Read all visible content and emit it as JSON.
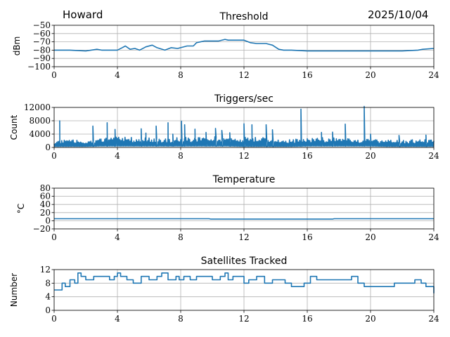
{
  "header": {
    "station": "Howard",
    "date": "2025/10/04"
  },
  "chart_data": [
    {
      "type": "line",
      "title": "Threshold",
      "ylabel": "dBm",
      "xlim": [
        0,
        24
      ],
      "ylim": [
        -100,
        -50
      ],
      "xticks": [
        0,
        4,
        8,
        12,
        16,
        20,
        24
      ],
      "yticks": [
        -100,
        -90,
        -80,
        -70,
        -60,
        -50
      ],
      "ytick_labels": [
        "−100",
        "−90",
        "−80",
        "−70",
        "−60",
        "−50"
      ],
      "grid": true,
      "color": "#1f77b4",
      "x": [
        0,
        1,
        2,
        2.7,
        3,
        4,
        4.3,
        4.5,
        4.8,
        5.1,
        5.4,
        5.8,
        6.2,
        6.5,
        7,
        7.4,
        7.8,
        8,
        8.4,
        8.8,
        9,
        9.5,
        10,
        10.4,
        10.8,
        11,
        11.3,
        11.6,
        12,
        12.4,
        12.8,
        13.4,
        13.8,
        14.2,
        14.5,
        15,
        16,
        17,
        18,
        19,
        20,
        21,
        22,
        23,
        23.3,
        24
      ],
      "y": [
        -80,
        -80,
        -81,
        -79,
        -80,
        -80,
        -77,
        -75,
        -79,
        -78,
        -80,
        -76,
        -74,
        -77,
        -80,
        -77,
        -78,
        -77,
        -75,
        -75,
        -71,
        -69,
        -69,
        -69,
        -67,
        -68,
        -68,
        -68,
        -68,
        -71,
        -72,
        -72,
        -74,
        -79,
        -80,
        -80,
        -81,
        -81,
        -81,
        -81,
        -81,
        -81,
        -81,
        -80,
        -79,
        -78
      ]
    },
    {
      "type": "line",
      "title": "Triggers/sec",
      "ylabel": "Count",
      "xlim": [
        0,
        24
      ],
      "ylim": [
        0,
        12000
      ],
      "xticks": [
        0,
        4,
        8,
        12,
        16,
        20,
        24
      ],
      "yticks": [
        0,
        4000,
        8000,
        12000
      ],
      "ytick_labels": [
        "0",
        "4000",
        "8000",
        "12000"
      ],
      "grid": true,
      "color": "#1f77b4",
      "baseline_x": [
        0,
        1,
        2,
        3,
        4,
        5,
        6,
        7,
        8,
        9,
        10,
        11,
        12,
        13,
        14,
        15,
        16,
        17,
        18,
        19,
        20,
        21,
        22,
        23,
        24
      ],
      "baseline_low": [
        300,
        300,
        300,
        400,
        400,
        400,
        400,
        400,
        400,
        400,
        400,
        400,
        300,
        300,
        300,
        300,
        400,
        400,
        400,
        400,
        400,
        300,
        300,
        300,
        300
      ],
      "baseline_high": [
        2200,
        2300,
        2000,
        2800,
        3200,
        3000,
        3000,
        2800,
        3000,
        3200,
        3200,
        3300,
        3200,
        3200,
        2800,
        2400,
        2800,
        3000,
        2800,
        2600,
        2400,
        2200,
        2200,
        2400,
        2400
      ],
      "spikes": [
        [
          0.35,
          8000
        ],
        [
          2.45,
          6400
        ],
        [
          3.35,
          7400
        ],
        [
          3.85,
          5400
        ],
        [
          5.5,
          5600
        ],
        [
          5.8,
          4300
        ],
        [
          6.45,
          6400
        ],
        [
          7.2,
          7400
        ],
        [
          7.5,
          4000
        ],
        [
          8.05,
          7900
        ],
        [
          8.25,
          6800
        ],
        [
          8.9,
          5500
        ],
        [
          9.6,
          4500
        ],
        [
          10.2,
          5700
        ],
        [
          10.6,
          5100
        ],
        [
          11.1,
          4400
        ],
        [
          12.0,
          7100
        ],
        [
          12.5,
          6800
        ],
        [
          13.4,
          6800
        ],
        [
          13.8,
          5300
        ],
        [
          15.6,
          11500
        ],
        [
          16.9,
          4500
        ],
        [
          17.6,
          4600
        ],
        [
          18.4,
          7000
        ],
        [
          19.6,
          12300
        ],
        [
          20.0,
          4000
        ],
        [
          21.8,
          3600
        ],
        [
          23.5,
          3700
        ]
      ]
    },
    {
      "type": "line",
      "title": "Temperature",
      "ylabel": "°C",
      "xlim": [
        0,
        24
      ],
      "ylim": [
        -20,
        80
      ],
      "xticks": [
        0,
        4,
        8,
        12,
        16,
        20,
        24
      ],
      "yticks": [
        -20,
        0,
        20,
        40,
        60,
        80
      ],
      "ytick_labels": [
        "−20",
        "0",
        "20",
        "40",
        "60",
        "80"
      ],
      "grid": true,
      "color": "#1f77b4",
      "x": [
        0,
        9.8,
        9.9,
        17.6,
        17.7,
        24
      ],
      "y": [
        5,
        5,
        4,
        4,
        5,
        5
      ]
    },
    {
      "type": "line",
      "title": "Satellites Tracked",
      "ylabel": "Number",
      "xlim": [
        0,
        24
      ],
      "ylim": [
        0,
        12
      ],
      "xticks": [
        0,
        4,
        8,
        12,
        16,
        20,
        24
      ],
      "yticks": [
        0,
        4,
        8,
        12
      ],
      "ytick_labels": [
        "0",
        "4",
        "8",
        "12"
      ],
      "grid": true,
      "color": "#1f77b4",
      "step": true,
      "x": [
        0,
        0.5,
        0.7,
        1.0,
        1.3,
        1.5,
        1.7,
        2.0,
        2.5,
        3.0,
        3.5,
        3.8,
        4.0,
        4.2,
        4.6,
        5.0,
        5.5,
        6.0,
        6.5,
        6.8,
        7.2,
        7.7,
        7.9,
        8.2,
        8.6,
        9.0,
        9.5,
        10.0,
        10.5,
        10.8,
        11.0,
        11.3,
        11.7,
        12.0,
        12.3,
        12.8,
        13.3,
        13.8,
        14.3,
        14.6,
        15.0,
        15.4,
        15.8,
        16.2,
        16.6,
        17.0,
        17.6,
        18.2,
        18.8,
        19.2,
        19.6,
        20.0,
        20.5,
        21.0,
        21.5,
        22.0,
        22.4,
        22.8,
        23.2,
        23.5,
        23.8,
        24
      ],
      "y": [
        6,
        8,
        7,
        9,
        8,
        11,
        10,
        9,
        10,
        10,
        9,
        10,
        11,
        10,
        9,
        8,
        10,
        9,
        10,
        11,
        9,
        10,
        9,
        10,
        9,
        10,
        10,
        9,
        10,
        11,
        9,
        10,
        10,
        8,
        9,
        10,
        8,
        9,
        9,
        8,
        7,
        7,
        8,
        10,
        9,
        9,
        9,
        9,
        10,
        8,
        7,
        7,
        7,
        7,
        8,
        8,
        8,
        9,
        8,
        7,
        7,
        5
      ]
    }
  ]
}
